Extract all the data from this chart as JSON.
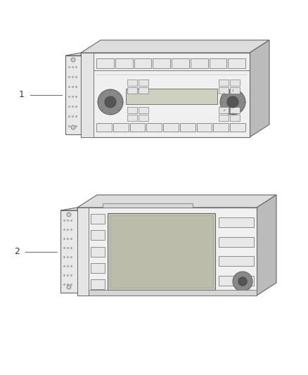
{
  "background_color": "#ffffff",
  "edge_color": "#888888",
  "dark_color": "#666666",
  "mid_color": "#bbbbbb",
  "light_color": "#dddddd",
  "very_light": "#f0f0f0",
  "knob_color": "#777777",
  "screen_color": "#c8c8b8",
  "fig_width": 4.38,
  "fig_height": 5.33,
  "dpi": 100
}
